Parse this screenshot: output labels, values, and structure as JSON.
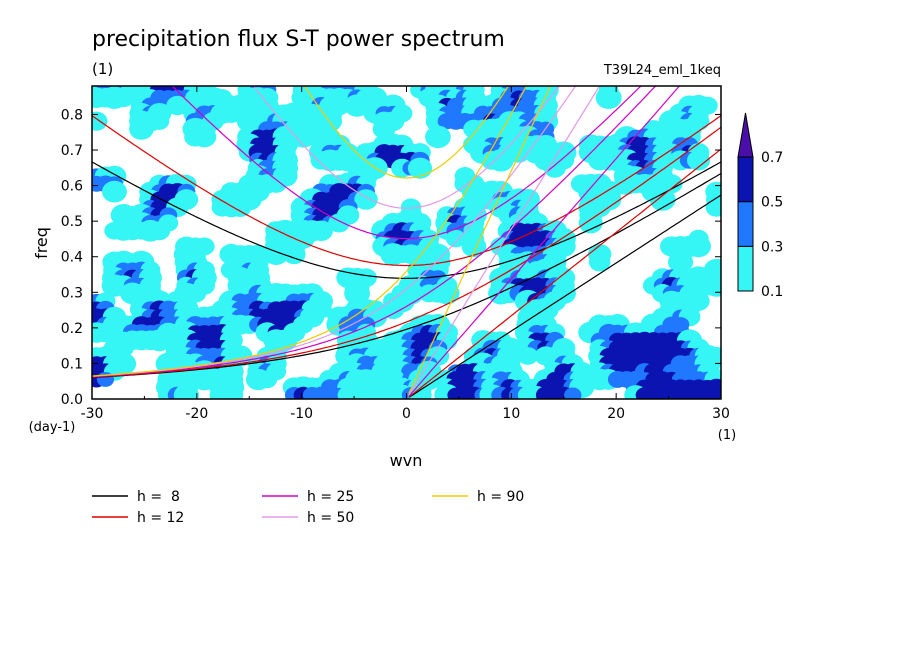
{
  "title": "precipitation flux S-T power spectrum",
  "units_label": "(1)",
  "run_label": "T39L24_eml_1keq",
  "chart_data": {
    "type": "heatmap",
    "xlabel": "wvn",
    "ylabel": "freq",
    "x_unit": "(1)",
    "y_unit": "(day-1)",
    "xlim": [
      -30,
      30
    ],
    "ylim": [
      0,
      0.88
    ],
    "xticks": [
      -30,
      -20,
      -10,
      0,
      10,
      20,
      30
    ],
    "yticks": [
      0.0,
      0.1,
      0.2,
      0.3,
      0.4,
      0.5,
      0.6,
      0.7,
      0.8
    ],
    "xtick_labels": [
      "-30",
      "-20",
      "-10",
      "0",
      "10",
      "20",
      "30"
    ],
    "ytick_labels": [
      "0.0",
      "0.1",
      "0.2",
      "0.3",
      "0.4",
      "0.5",
      "0.6",
      "0.7",
      "0.8"
    ],
    "colorbar": {
      "levels": [
        0.1,
        0.3,
        0.5,
        0.7
      ],
      "labels": [
        "0.1",
        "0.3",
        "0.5",
        "0.7"
      ],
      "colors": [
        "#36f5f5",
        "#1f78ff",
        "#0b14b0",
        "#4a0fa8"
      ]
    },
    "dispersion_curves": [
      {
        "name": "h =  8",
        "h": 8,
        "color": "#000000"
      },
      {
        "name": "h = 12",
        "h": 12,
        "color": "#e00000"
      },
      {
        "name": "h = 25",
        "h": 25,
        "color": "#d000c8"
      },
      {
        "name": "h = 50",
        "h": 50,
        "color": "#e39ae6"
      },
      {
        "name": "h = 90",
        "h": 90,
        "color": "#f0cc00"
      }
    ]
  }
}
